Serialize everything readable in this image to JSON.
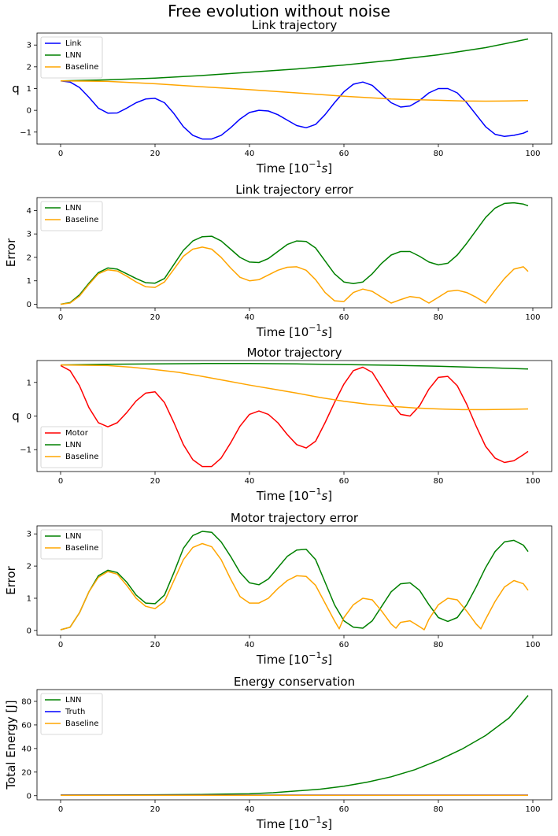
{
  "figure": {
    "suptitle": "Free evolution without noise"
  },
  "colors": {
    "blue": "#0000ff",
    "green": "#008000",
    "orange": "#ffa500",
    "red": "#ff0000"
  },
  "chart_data": [
    {
      "type": "line",
      "title": "Link trajectory",
      "xlabel": "Time [10",
      "xlabel_sup": "−1",
      "xlabel_unit": "s",
      "xlabel_close": "]",
      "ylabel": "q",
      "xlim": [
        -5,
        104
      ],
      "ylim": [
        -1.55,
        3.55
      ],
      "xticks": [
        0,
        20,
        40,
        60,
        80,
        100
      ],
      "yticks": [
        -1,
        0,
        1,
        2,
        3
      ],
      "legend": "upper-left",
      "series": [
        {
          "name": "Link",
          "color": "#0000ff",
          "x": [
            0,
            2,
            4,
            6,
            8,
            10,
            12,
            14,
            16,
            18,
            20,
            22,
            24,
            26,
            28,
            30,
            32,
            34,
            36,
            38,
            40,
            42,
            44,
            46,
            48,
            50,
            52,
            54,
            56,
            58,
            60,
            62,
            64,
            66,
            68,
            70,
            72,
            74,
            76,
            78,
            80,
            82,
            84,
            86,
            88,
            90,
            92,
            94,
            96,
            98,
            99
          ],
          "y": [
            1.35,
            1.3,
            1.05,
            0.6,
            0.1,
            -0.13,
            -0.12,
            0.1,
            0.35,
            0.52,
            0.55,
            0.35,
            -0.15,
            -0.75,
            -1.15,
            -1.32,
            -1.32,
            -1.15,
            -0.8,
            -0.4,
            -0.1,
            0,
            -0.03,
            -0.2,
            -0.45,
            -0.7,
            -0.8,
            -0.65,
            -0.2,
            0.35,
            0.85,
            1.2,
            1.3,
            1.15,
            0.75,
            0.35,
            0.15,
            0.2,
            0.45,
            0.8,
            1.0,
            1.0,
            0.8,
            0.35,
            -0.2,
            -0.75,
            -1.1,
            -1.2,
            -1.15,
            -1.05,
            -0.95
          ]
        },
        {
          "name": "LNN",
          "color": "#008000",
          "x": [
            0,
            10,
            20,
            30,
            40,
            50,
            60,
            70,
            80,
            90,
            99
          ],
          "y": [
            1.35,
            1.4,
            1.48,
            1.6,
            1.75,
            1.9,
            2.08,
            2.3,
            2.55,
            2.88,
            3.28
          ]
        },
        {
          "name": "Baseline",
          "color": "#ffa500",
          "x": [
            0,
            10,
            20,
            30,
            40,
            50,
            60,
            70,
            80,
            85,
            90,
            95,
            99
          ],
          "y": [
            1.35,
            1.33,
            1.22,
            1.08,
            0.95,
            0.8,
            0.65,
            0.52,
            0.46,
            0.43,
            0.42,
            0.43,
            0.45
          ]
        }
      ]
    },
    {
      "type": "line",
      "title": "Link trajectory error",
      "xlabel": "Time [10",
      "xlabel_sup": "−1",
      "xlabel_unit": "s",
      "xlabel_close": "]",
      "ylabel": "Error",
      "xlim": [
        -5,
        104
      ],
      "ylim": [
        -0.15,
        4.55
      ],
      "xticks": [
        0,
        20,
        40,
        60,
        80,
        100
      ],
      "yticks": [
        0,
        1,
        2,
        3,
        4
      ],
      "legend": "upper-left",
      "series": [
        {
          "name": "LNN",
          "color": "#008000",
          "x": [
            0,
            2,
            4,
            6,
            8,
            10,
            12,
            14,
            16,
            18,
            20,
            22,
            24,
            26,
            28,
            30,
            32,
            34,
            36,
            38,
            40,
            42,
            44,
            46,
            48,
            50,
            52,
            54,
            56,
            58,
            60,
            62,
            64,
            66,
            68,
            70,
            72,
            74,
            76,
            78,
            80,
            82,
            84,
            86,
            88,
            90,
            92,
            94,
            96,
            98,
            99
          ],
          "y": [
            0,
            0.07,
            0.4,
            0.9,
            1.35,
            1.55,
            1.5,
            1.3,
            1.1,
            0.92,
            0.9,
            1.1,
            1.7,
            2.3,
            2.7,
            2.88,
            2.9,
            2.7,
            2.35,
            2.0,
            1.8,
            1.78,
            1.95,
            2.25,
            2.55,
            2.7,
            2.68,
            2.4,
            1.85,
            1.3,
            0.95,
            0.88,
            0.95,
            1.3,
            1.75,
            2.1,
            2.25,
            2.25,
            2.05,
            1.8,
            1.68,
            1.75,
            2.1,
            2.6,
            3.15,
            3.7,
            4.1,
            4.3,
            4.33,
            4.27,
            4.2
          ]
        },
        {
          "name": "Baseline",
          "color": "#ffa500",
          "x": [
            0,
            2,
            4,
            6,
            8,
            10,
            12,
            14,
            16,
            18,
            20,
            22,
            24,
            26,
            28,
            30,
            32,
            34,
            36,
            38,
            40,
            42,
            44,
            46,
            48,
            50,
            52,
            54,
            56,
            58,
            60,
            62,
            64,
            66,
            68,
            70,
            72,
            74,
            76,
            78,
            80,
            82,
            84,
            86,
            88,
            90,
            92,
            94,
            96,
            98,
            99
          ],
          "y": [
            0,
            0.05,
            0.35,
            0.85,
            1.3,
            1.47,
            1.42,
            1.2,
            0.95,
            0.75,
            0.72,
            0.95,
            1.5,
            2.05,
            2.35,
            2.44,
            2.35,
            2.0,
            1.55,
            1.15,
            1.0,
            1.05,
            1.25,
            1.45,
            1.58,
            1.6,
            1.45,
            1.05,
            0.5,
            0.15,
            0.12,
            0.5,
            0.65,
            0.55,
            0.3,
            0.05,
            0.2,
            0.33,
            0.28,
            0.05,
            0.3,
            0.55,
            0.6,
            0.5,
            0.3,
            0.05,
            0.6,
            1.1,
            1.5,
            1.6,
            1.4
          ]
        }
      ]
    },
    {
      "type": "line",
      "title": "Motor trajectory",
      "xlabel": "Time [10",
      "xlabel_sup": "−1",
      "xlabel_unit": "s",
      "xlabel_close": "]",
      "ylabel": "q",
      "xlim": [
        -5,
        104
      ],
      "ylim": [
        -1.65,
        1.65
      ],
      "xticks": [
        0,
        20,
        40,
        60,
        80,
        100
      ],
      "yticks": [
        -1,
        0,
        1
      ],
      "legend": "lower-left",
      "series": [
        {
          "name": "Motor",
          "color": "#ff0000",
          "x": [
            0,
            2,
            4,
            6,
            8,
            10,
            12,
            14,
            16,
            18,
            20,
            22,
            24,
            26,
            28,
            30,
            32,
            34,
            36,
            38,
            40,
            42,
            44,
            46,
            48,
            50,
            52,
            54,
            56,
            58,
            60,
            62,
            64,
            66,
            68,
            70,
            72,
            74,
            76,
            78,
            80,
            82,
            84,
            86,
            88,
            90,
            92,
            94,
            96,
            98,
            99
          ],
          "y": [
            1.5,
            1.35,
            0.9,
            0.25,
            -0.2,
            -0.32,
            -0.2,
            0.1,
            0.45,
            0.68,
            0.72,
            0.4,
            -0.2,
            -0.85,
            -1.3,
            -1.5,
            -1.5,
            -1.25,
            -0.8,
            -0.3,
            0.05,
            0.15,
            0.05,
            -0.2,
            -0.55,
            -0.85,
            -0.95,
            -0.75,
            -0.2,
            0.4,
            0.95,
            1.35,
            1.45,
            1.3,
            0.85,
            0.4,
            0.05,
            0.0,
            0.3,
            0.8,
            1.15,
            1.18,
            0.9,
            0.35,
            -0.3,
            -0.9,
            -1.25,
            -1.38,
            -1.33,
            -1.15,
            -1.05
          ]
        },
        {
          "name": "LNN",
          "color": "#008000",
          "x": [
            0,
            10,
            20,
            30,
            40,
            50,
            60,
            70,
            80,
            90,
            99
          ],
          "y": [
            1.52,
            1.54,
            1.55,
            1.56,
            1.56,
            1.55,
            1.53,
            1.51,
            1.48,
            1.44,
            1.4
          ]
        },
        {
          "name": "Baseline",
          "color": "#ffa500",
          "x": [
            0,
            5,
            10,
            15,
            20,
            25,
            30,
            35,
            40,
            45,
            50,
            55,
            60,
            65,
            70,
            75,
            80,
            85,
            90,
            95,
            99
          ],
          "y": [
            1.52,
            1.51,
            1.5,
            1.45,
            1.38,
            1.3,
            1.18,
            1.05,
            0.92,
            0.8,
            0.68,
            0.55,
            0.44,
            0.35,
            0.29,
            0.24,
            0.21,
            0.19,
            0.19,
            0.2,
            0.21
          ]
        }
      ]
    },
    {
      "type": "line",
      "title": "Motor trajectory error",
      "xlabel": "Time [10",
      "xlabel_sup": "−1",
      "xlabel_unit": "s",
      "xlabel_close": "]",
      "ylabel": "Error",
      "xlim": [
        -5,
        104
      ],
      "ylim": [
        -0.15,
        3.25
      ],
      "xticks": [
        0,
        20,
        40,
        60,
        80,
        100
      ],
      "yticks": [
        0,
        1,
        2,
        3
      ],
      "legend": "upper-left",
      "series": [
        {
          "name": "LNN",
          "color": "#008000",
          "x": [
            0,
            2,
            4,
            6,
            8,
            10,
            12,
            14,
            16,
            18,
            20,
            22,
            24,
            26,
            28,
            30,
            32,
            34,
            36,
            38,
            40,
            42,
            44,
            46,
            48,
            50,
            52,
            54,
            56,
            58,
            60,
            62,
            64,
            66,
            68,
            70,
            72,
            74,
            76,
            78,
            80,
            82,
            84,
            86,
            88,
            90,
            92,
            94,
            96,
            98,
            99
          ],
          "y": [
            0.02,
            0.1,
            0.55,
            1.2,
            1.7,
            1.87,
            1.8,
            1.5,
            1.1,
            0.85,
            0.83,
            1.1,
            1.8,
            2.55,
            2.95,
            3.08,
            3.05,
            2.75,
            2.3,
            1.8,
            1.48,
            1.42,
            1.6,
            1.95,
            2.3,
            2.5,
            2.52,
            2.2,
            1.5,
            0.8,
            0.3,
            0.1,
            0.07,
            0.3,
            0.75,
            1.2,
            1.45,
            1.48,
            1.25,
            0.8,
            0.4,
            0.28,
            0.4,
            0.8,
            1.35,
            1.95,
            2.45,
            2.75,
            2.8,
            2.65,
            2.45
          ]
        },
        {
          "name": "Baseline",
          "color": "#ffa500",
          "x": [
            0,
            2,
            4,
            6,
            8,
            10,
            12,
            14,
            16,
            18,
            20,
            22,
            24,
            26,
            28,
            30,
            32,
            34,
            36,
            38,
            40,
            42,
            44,
            46,
            48,
            50,
            52,
            54,
            56,
            58,
            59,
            60,
            62,
            64,
            66,
            68,
            70,
            71,
            72,
            74,
            76,
            77,
            78,
            80,
            82,
            84,
            86,
            88,
            89,
            90,
            92,
            94,
            96,
            98,
            99
          ],
          "y": [
            0.02,
            0.1,
            0.55,
            1.2,
            1.65,
            1.83,
            1.75,
            1.4,
            1.0,
            0.75,
            0.68,
            0.9,
            1.55,
            2.2,
            2.58,
            2.7,
            2.6,
            2.2,
            1.6,
            1.05,
            0.85,
            0.85,
            1.0,
            1.3,
            1.55,
            1.7,
            1.68,
            1.4,
            0.85,
            0.3,
            0.05,
            0.4,
            0.8,
            1.0,
            0.95,
            0.6,
            0.2,
            0.07,
            0.25,
            0.3,
            0.12,
            0.02,
            0.35,
            0.8,
            1.0,
            0.95,
            0.6,
            0.2,
            0.05,
            0.35,
            0.9,
            1.35,
            1.55,
            1.45,
            1.25
          ]
        }
      ]
    },
    {
      "type": "line",
      "title": "Energy conservation",
      "xlabel": "Time [10",
      "xlabel_sup": "−1",
      "xlabel_unit": "s",
      "xlabel_close": "]",
      "ylabel": "Total Energy [J]",
      "xlim": [
        -5,
        104
      ],
      "ylim": [
        -3.5,
        90
      ],
      "xticks": [
        0,
        20,
        40,
        60,
        80,
        100
      ],
      "yticks": [
        0,
        20,
        40,
        60,
        80
      ],
      "legend": "upper-left",
      "series": [
        {
          "name": "LNN",
          "color": "#008000",
          "x": [
            0,
            10,
            20,
            30,
            35,
            40,
            45,
            50,
            55,
            60,
            65,
            70,
            75,
            80,
            85,
            90,
            95,
            99
          ],
          "y": [
            0.5,
            0.6,
            0.8,
            1.0,
            1.3,
            1.6,
            2.5,
            4.0,
            5.5,
            8.0,
            11.5,
            16.0,
            22.0,
            30.0,
            39.5,
            51.0,
            66.0,
            85.0
          ]
        },
        {
          "name": "Truth",
          "color": "#0000ff",
          "x": [
            0,
            20,
            40,
            60,
            80,
            99
          ],
          "y": [
            0.5,
            0.5,
            0.5,
            0.5,
            0.5,
            0.5
          ]
        },
        {
          "name": "Baseline",
          "color": "#ffa500",
          "x": [
            0,
            20,
            40,
            60,
            80,
            99
          ],
          "y": [
            0.3,
            0.4,
            0.4,
            0.4,
            0.4,
            0.4
          ]
        }
      ]
    }
  ]
}
